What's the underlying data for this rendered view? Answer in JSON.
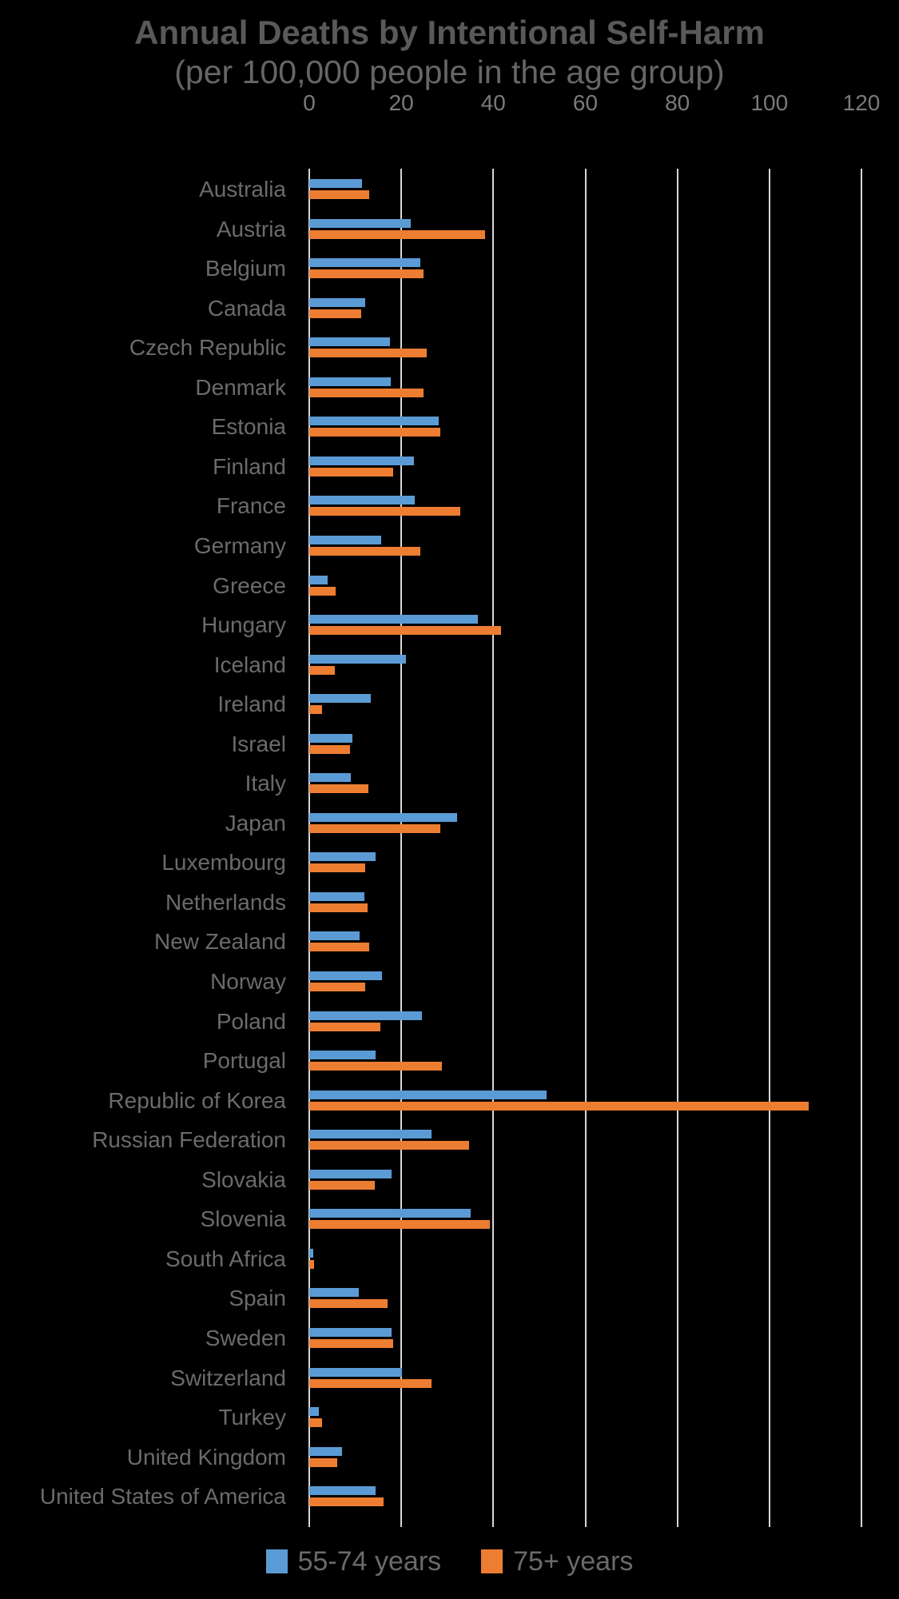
{
  "title": "Annual Deaths by Intentional Self-Harm",
  "subtitle": "(per 100,000 people in the age group)",
  "colors": {
    "background": "#000000",
    "title_text": "#595959",
    "subtitle_text": "#666666",
    "tick_text": "#7A7A7A",
    "category_text": "#6B6B6B",
    "legend_text": "#6A6A6A",
    "gridline": "#D6D6D6",
    "series_55_74": "#5B9BD5",
    "series_75_plus": "#ED7D31"
  },
  "legend": {
    "items": [
      {
        "label": "55-74 years",
        "color": "#5B9BD5"
      },
      {
        "label": "75+ years",
        "color": "#ED7D31"
      }
    ]
  },
  "chart_data": {
    "type": "bar",
    "orientation": "horizontal",
    "title": "Annual Deaths by Intentional Self-Harm",
    "subtitle": "(per 100,000 people in the age group)",
    "xlabel": "",
    "ylabel": "",
    "xlim": [
      0,
      120
    ],
    "xticks": [
      0,
      20,
      40,
      60,
      80,
      100,
      120
    ],
    "grid": true,
    "legend_position": "bottom",
    "categories": [
      "Australia",
      "Austria",
      "Belgium",
      "Canada",
      "Czech Republic",
      "Denmark",
      "Estonia",
      "Finland",
      "France",
      "Germany",
      "Greece",
      "Hungary",
      "Iceland",
      "Ireland",
      "Israel",
      "Italy",
      "Japan",
      "Luxembourg",
      "Netherlands",
      "New Zealand",
      "Norway",
      "Poland",
      "Portugal",
      "Republic of Korea",
      "Russian Federation",
      "Slovakia",
      "Slovenia",
      "South Africa",
      "Spain",
      "Sweden",
      "Switzerland",
      "Turkey",
      "United Kingdom",
      "United States of America"
    ],
    "series": [
      {
        "name": "55-74 years",
        "color": "#5B9BD5",
        "values": [
          11.5,
          22.1,
          24.2,
          12.2,
          17.5,
          17.7,
          28.1,
          22.7,
          22.9,
          15.7,
          3.9,
          36.7,
          21.0,
          13.4,
          9.4,
          9.1,
          32.1,
          14.4,
          12.0,
          11.0,
          15.8,
          24.4,
          14.4,
          51.5,
          26.5,
          17.8,
          35.1,
          0.9,
          10.7,
          17.8,
          20.2,
          2.1,
          7.1,
          14.4
        ]
      },
      {
        "name": "75+ years",
        "color": "#ED7D31",
        "values": [
          13.1,
          38.2,
          24.9,
          11.3,
          25.5,
          24.9,
          28.5,
          18.3,
          32.9,
          24.1,
          5.8,
          41.7,
          5.5,
          2.7,
          8.8,
          12.9,
          28.4,
          12.2,
          12.7,
          13.1,
          12.2,
          15.4,
          28.9,
          108.6,
          34.8,
          14.2,
          39.3,
          1.0,
          17.0,
          18.2,
          26.6,
          2.7,
          6.1,
          16.2
        ]
      }
    ]
  }
}
